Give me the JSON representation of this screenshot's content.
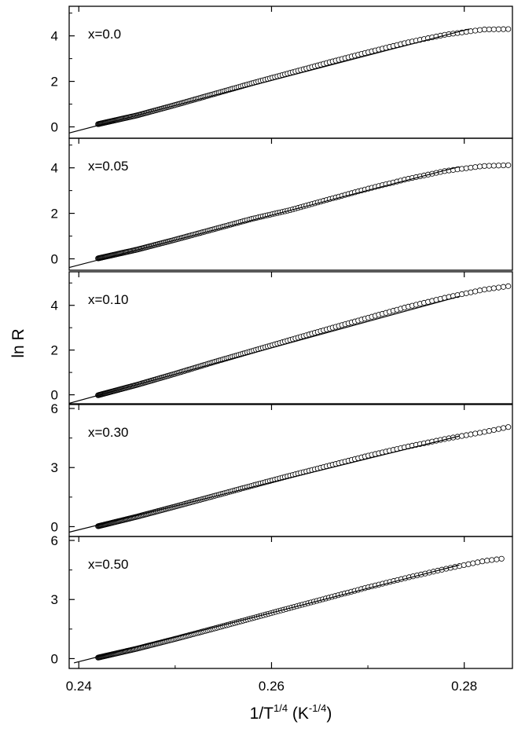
{
  "chart_data": {
    "type": "scatter",
    "layout": "stacked panels sharing x axis",
    "xlabel": {
      "base": "1/T",
      "sup": "1/4",
      "unit_open": " (K",
      "unit_sup": "-1/4",
      "unit_close": ")"
    },
    "ylabel": "ln R",
    "xlim": [
      0.239,
      0.285
    ],
    "xticks": [
      0.24,
      0.26,
      0.28
    ],
    "xtick_labels": [
      "0.24",
      "0.26",
      "0.28"
    ],
    "marker": "open-circle",
    "fit_line": true,
    "grid": false,
    "panels": [
      {
        "label": "x=0.0",
        "ylim": [
          -0.5,
          5.3
        ],
        "yticks": [
          0,
          2,
          4
        ],
        "ytick_labels": [
          "0",
          "2",
          "4"
        ],
        "x_range": [
          0.242,
          0.285
        ],
        "points": [
          [
            0.242,
            0.12
          ],
          [
            0.246,
            0.5
          ],
          [
            0.25,
            0.96
          ],
          [
            0.254,
            1.44
          ],
          [
            0.258,
            1.92
          ],
          [
            0.262,
            2.38
          ],
          [
            0.266,
            2.84
          ],
          [
            0.27,
            3.28
          ],
          [
            0.274,
            3.7
          ],
          [
            0.278,
            4.05
          ],
          [
            0.282,
            4.28
          ],
          [
            0.285,
            4.3
          ]
        ],
        "fit": {
          "x1": 0.239,
          "y1": -0.27,
          "x2": 0.2805,
          "y2": 4.3
        }
      },
      {
        "label": "x=0.05",
        "ylim": [
          -0.5,
          5.3
        ],
        "yticks": [
          0,
          2,
          4
        ],
        "ytick_labels": [
          "0",
          "2",
          "4"
        ],
        "x_range": [
          0.242,
          0.285
        ],
        "points": [
          [
            0.242,
            0.02
          ],
          [
            0.246,
            0.4
          ],
          [
            0.25,
            0.84
          ],
          [
            0.254,
            1.3
          ],
          [
            0.258,
            1.76
          ],
          [
            0.262,
            2.15
          ],
          [
            0.266,
            2.62
          ],
          [
            0.27,
            3.08
          ],
          [
            0.274,
            3.5
          ],
          [
            0.278,
            3.86
          ],
          [
            0.282,
            4.08
          ],
          [
            0.285,
            4.12
          ]
        ],
        "fit": {
          "x1": 0.239,
          "y1": -0.38,
          "x2": 0.2795,
          "y2": 4.05
        }
      },
      {
        "label": "x=0.10",
        "ylim": [
          -0.4,
          5.5
        ],
        "yticks": [
          0,
          2,
          4
        ],
        "ytick_labels": [
          "0",
          "2",
          "4"
        ],
        "x_range": [
          0.242,
          0.285
        ],
        "points": [
          [
            0.242,
            -0.02
          ],
          [
            0.246,
            0.44
          ],
          [
            0.25,
            0.94
          ],
          [
            0.254,
            1.46
          ],
          [
            0.258,
            1.96
          ],
          [
            0.262,
            2.46
          ],
          [
            0.266,
            2.96
          ],
          [
            0.27,
            3.44
          ],
          [
            0.274,
            3.92
          ],
          [
            0.278,
            4.34
          ],
          [
            0.282,
            4.7
          ],
          [
            0.285,
            4.88
          ]
        ],
        "fit": {
          "x1": 0.239,
          "y1": -0.38,
          "x2": 0.2795,
          "y2": 4.4
        }
      },
      {
        "label": "x=0.30",
        "ylim": [
          -0.5,
          6.2
        ],
        "yticks": [
          0,
          3,
          6
        ],
        "ytick_labels": [
          "0",
          "3",
          "6"
        ],
        "x_range": [
          0.242,
          0.285
        ],
        "points": [
          [
            0.242,
            0.02
          ],
          [
            0.246,
            0.5
          ],
          [
            0.25,
            1.02
          ],
          [
            0.254,
            1.55
          ],
          [
            0.258,
            2.08
          ],
          [
            0.262,
            2.6
          ],
          [
            0.266,
            3.1
          ],
          [
            0.27,
            3.6
          ],
          [
            0.274,
            4.05
          ],
          [
            0.278,
            4.45
          ],
          [
            0.282,
            4.8
          ],
          [
            0.285,
            5.1
          ]
        ],
        "fit": {
          "x1": 0.239,
          "y1": -0.28,
          "x2": 0.2795,
          "y2": 4.6
        }
      },
      {
        "label": "x=0.50",
        "ylim": [
          -0.5,
          6.2
        ],
        "yticks": [
          0,
          3,
          6
        ],
        "ytick_labels": [
          "0",
          "3",
          "6"
        ],
        "x_range": [
          0.242,
          0.284
        ],
        "points": [
          [
            0.242,
            0.05
          ],
          [
            0.246,
            0.5
          ],
          [
            0.25,
            1.0
          ],
          [
            0.254,
            1.52
          ],
          [
            0.258,
            2.05
          ],
          [
            0.262,
            2.58
          ],
          [
            0.266,
            3.1
          ],
          [
            0.27,
            3.62
          ],
          [
            0.274,
            4.1
          ],
          [
            0.278,
            4.55
          ],
          [
            0.282,
            4.95
          ],
          [
            0.284,
            5.08
          ]
        ],
        "fit": {
          "x1": 0.2395,
          "y1": -0.22,
          "x2": 0.2795,
          "y2": 4.75
        }
      }
    ]
  }
}
